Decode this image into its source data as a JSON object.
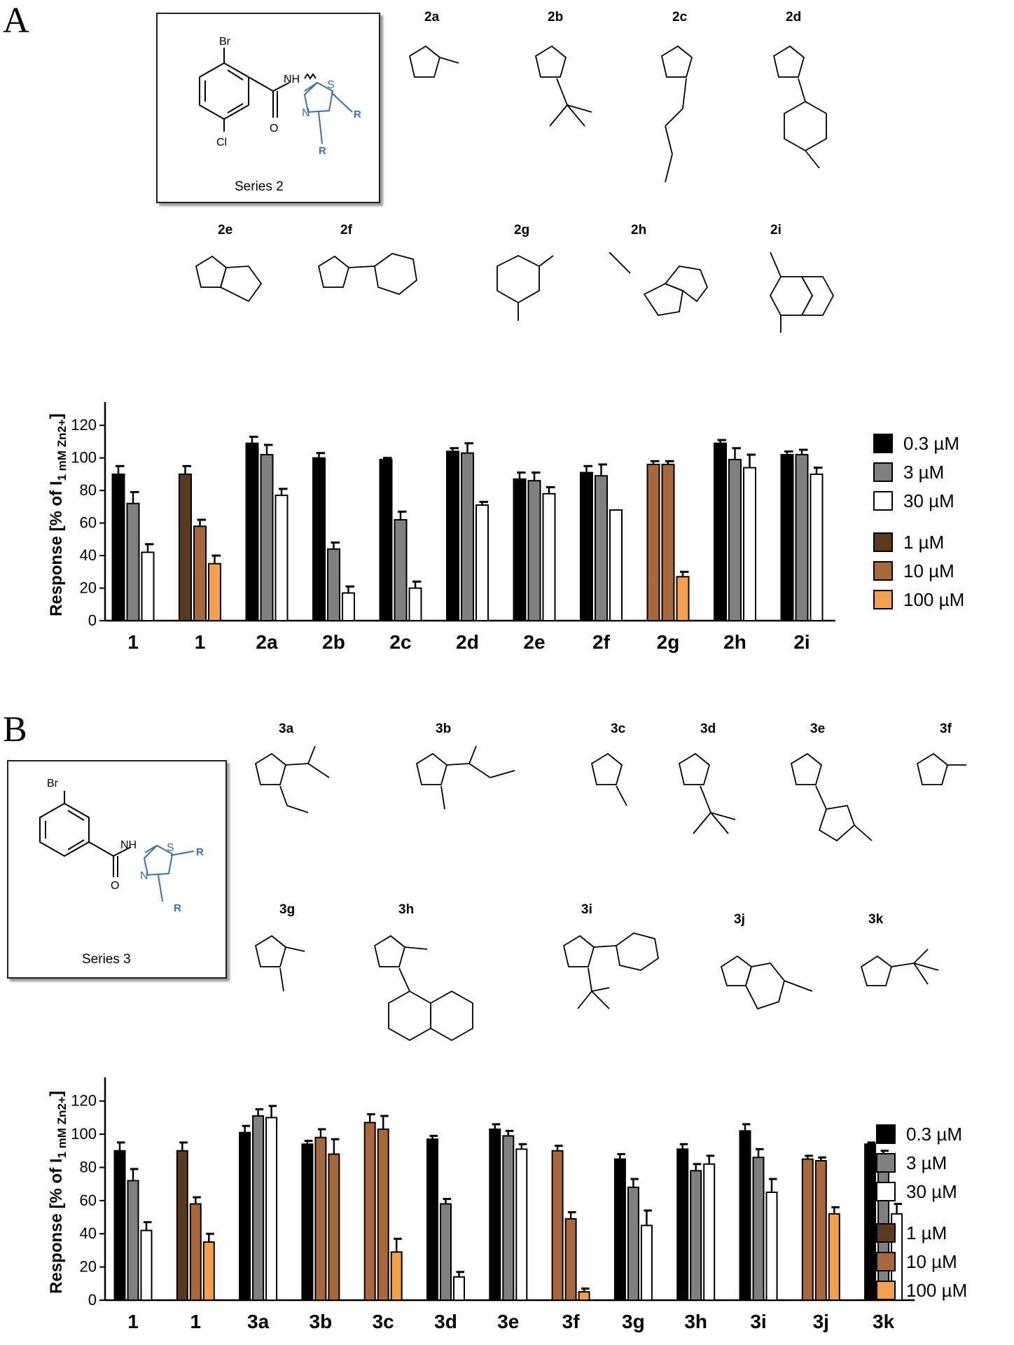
{
  "panels": [
    {
      "letter": "A",
      "series_caption": "Series 2",
      "scaffold_atoms": {
        "br": "Br",
        "cl": "Cl",
        "o": "O",
        "nh": "NH",
        "s": "S",
        "n": "N",
        "r1": "R",
        "r2": "R"
      },
      "compound_labels": [
        "2a",
        "2b",
        "2c",
        "2d",
        "2e",
        "2f",
        "2g",
        "2h",
        "2i"
      ]
    },
    {
      "letter": "B",
      "series_caption": "Series 3",
      "scaffold_atoms": {
        "br": "Br",
        "o": "O",
        "nh": "NH",
        "s": "S",
        "n": "N",
        "r1": "R",
        "r2": "R"
      },
      "compound_labels": [
        "3a",
        "3b",
        "3c",
        "3d",
        "3e",
        "3f",
        "3g",
        "3h",
        "3i",
        "3j",
        "3k"
      ]
    }
  ],
  "colors": {
    "black": "#000000",
    "grey": "#808080",
    "white": "#ffffff",
    "dark_brown": "#5a3a1e",
    "brown": "#a8683a",
    "orange": "#f5a04a",
    "scaffold_blue": "#3a6fb5"
  },
  "chart_data": [
    {
      "type": "bar",
      "ylabel": "Response [% of I1 mM Zn2+]",
      "ylabel_parts": {
        "main": "Response [% of I",
        "sub": "1 mM Zn2+",
        "close": "]"
      },
      "ylim": [
        0,
        130
      ],
      "yticks": [
        "0",
        "20",
        "40",
        "60",
        "80",
        "100",
        "120"
      ],
      "categories": [
        "1",
        "1",
        "2a",
        "2b",
        "2c",
        "2d",
        "2e",
        "2f",
        "2g",
        "2h",
        "2i"
      ],
      "legend_top": [
        "0.3 µM",
        "3 µM",
        "30 µM"
      ],
      "legend_bottom": [
        "1 µM",
        "10 µM",
        "100 µM"
      ],
      "groups": [
        {
          "bars": [
            {
              "v": 90,
              "e": 5,
              "c": "black"
            },
            {
              "v": 72,
              "e": 7,
              "c": "grey"
            },
            {
              "v": 42,
              "e": 5,
              "c": "white"
            }
          ]
        },
        {
          "bars": [
            {
              "v": 90,
              "e": 5,
              "c": "dark_brown"
            },
            {
              "v": 58,
              "e": 4,
              "c": "brown"
            },
            {
              "v": 35,
              "e": 5,
              "c": "orange"
            }
          ]
        },
        {
          "bars": [
            {
              "v": 109,
              "e": 4,
              "c": "black"
            },
            {
              "v": 102,
              "e": 6,
              "c": "grey"
            },
            {
              "v": 77,
              "e": 4,
              "c": "white"
            }
          ]
        },
        {
          "bars": [
            {
              "v": 100,
              "e": 3,
              "c": "black"
            },
            {
              "v": 44,
              "e": 4,
              "c": "grey"
            },
            {
              "v": 17,
              "e": 4,
              "c": "white"
            }
          ]
        },
        {
          "bars": [
            {
              "v": 99,
              "e": 1,
              "c": "black"
            },
            {
              "v": 62,
              "e": 5,
              "c": "grey"
            },
            {
              "v": 20,
              "e": 4,
              "c": "white"
            }
          ]
        },
        {
          "bars": [
            {
              "v": 104,
              "e": 2,
              "c": "black"
            },
            {
              "v": 103,
              "e": 6,
              "c": "grey"
            },
            {
              "v": 71,
              "e": 2,
              "c": "white"
            }
          ]
        },
        {
          "bars": [
            {
              "v": 87,
              "e": 4,
              "c": "black"
            },
            {
              "v": 86,
              "e": 5,
              "c": "grey"
            },
            {
              "v": 78,
              "e": 4,
              "c": "white"
            }
          ]
        },
        {
          "bars": [
            {
              "v": 91,
              "e": 4,
              "c": "black"
            },
            {
              "v": 89,
              "e": 7,
              "c": "grey"
            },
            {
              "v": 68,
              "e": 0,
              "c": "white"
            }
          ]
        },
        {
          "bars": [
            {
              "v": 96,
              "e": 2,
              "c": "brown"
            },
            {
              "v": 96,
              "e": 2,
              "c": "brown"
            },
            {
              "v": 27,
              "e": 3,
              "c": "orange"
            }
          ]
        },
        {
          "bars": [
            {
              "v": 109,
              "e": 2,
              "c": "black"
            },
            {
              "v": 99,
              "e": 7,
              "c": "grey"
            },
            {
              "v": 94,
              "e": 8,
              "c": "white"
            }
          ]
        },
        {
          "bars": [
            {
              "v": 102,
              "e": 2,
              "c": "black"
            },
            {
              "v": 102,
              "e": 3,
              "c": "grey"
            },
            {
              "v": 90,
              "e": 4,
              "c": "white"
            }
          ]
        }
      ]
    },
    {
      "type": "bar",
      "ylabel": "Response [% of I1 mM Zn2+]",
      "ylabel_parts": {
        "main": "Response [% of I",
        "sub": "1 mM Zn2+",
        "close": "]"
      },
      "ylim": [
        0,
        130
      ],
      "yticks": [
        "0",
        "20",
        "40",
        "60",
        "80",
        "100",
        "120"
      ],
      "categories": [
        "1",
        "1",
        "3a",
        "3b",
        "3c",
        "3d",
        "3e",
        "3f",
        "3g",
        "3h",
        "3i",
        "3j",
        "3k"
      ],
      "legend_top": [
        "0.3 µM",
        "3 µM",
        "30 µM"
      ],
      "legend_bottom": [
        "1 µM",
        "10 µM",
        "100 µM"
      ],
      "groups": [
        {
          "bars": [
            {
              "v": 90,
              "e": 5,
              "c": "black"
            },
            {
              "v": 72,
              "e": 7,
              "c": "grey"
            },
            {
              "v": 42,
              "e": 5,
              "c": "white"
            }
          ]
        },
        {
          "bars": [
            {
              "v": 90,
              "e": 5,
              "c": "dark_brown"
            },
            {
              "v": 58,
              "e": 4,
              "c": "brown"
            },
            {
              "v": 35,
              "e": 5,
              "c": "orange"
            }
          ]
        },
        {
          "bars": [
            {
              "v": 101,
              "e": 4,
              "c": "black"
            },
            {
              "v": 111,
              "e": 4,
              "c": "grey"
            },
            {
              "v": 110,
              "e": 7,
              "c": "white"
            }
          ]
        },
        {
          "bars": [
            {
              "v": 94,
              "e": 2,
              "c": "black"
            },
            {
              "v": 98,
              "e": 5,
              "c": "brown"
            },
            {
              "v": 88,
              "e": 9,
              "c": "brown"
            }
          ]
        },
        {
          "bars": [
            {
              "v": 107,
              "e": 5,
              "c": "brown"
            },
            {
              "v": 103,
              "e": 8,
              "c": "brown"
            },
            {
              "v": 29,
              "e": 8,
              "c": "orange"
            }
          ]
        },
        {
          "bars": [
            {
              "v": 97,
              "e": 2,
              "c": "black"
            },
            {
              "v": 58,
              "e": 3,
              "c": "grey"
            },
            {
              "v": 14,
              "e": 3,
              "c": "white"
            }
          ]
        },
        {
          "bars": [
            {
              "v": 103,
              "e": 3,
              "c": "black"
            },
            {
              "v": 99,
              "e": 3,
              "c": "grey"
            },
            {
              "v": 91,
              "e": 3,
              "c": "white"
            }
          ]
        },
        {
          "bars": [
            {
              "v": 90,
              "e": 3,
              "c": "brown"
            },
            {
              "v": 49,
              "e": 4,
              "c": "brown"
            },
            {
              "v": 5,
              "e": 2,
              "c": "orange"
            }
          ]
        },
        {
          "bars": [
            {
              "v": 85,
              "e": 3,
              "c": "black"
            },
            {
              "v": 68,
              "e": 5,
              "c": "grey"
            },
            {
              "v": 45,
              "e": 9,
              "c": "white"
            }
          ]
        },
        {
          "bars": [
            {
              "v": 91,
              "e": 3,
              "c": "black"
            },
            {
              "v": 78,
              "e": 4,
              "c": "grey"
            },
            {
              "v": 82,
              "e": 5,
              "c": "white"
            }
          ]
        },
        {
          "bars": [
            {
              "v": 102,
              "e": 4,
              "c": "black"
            },
            {
              "v": 86,
              "e": 5,
              "c": "grey"
            },
            {
              "v": 65,
              "e": 8,
              "c": "white"
            }
          ]
        },
        {
          "bars": [
            {
              "v": 85,
              "e": 2,
              "c": "brown"
            },
            {
              "v": 84,
              "e": 2,
              "c": "brown"
            },
            {
              "v": 52,
              "e": 4,
              "c": "orange"
            }
          ]
        },
        {
          "bars": [
            {
              "v": 94,
              "e": 1,
              "c": "black"
            },
            {
              "v": 87,
              "e": 3,
              "c": "grey"
            },
            {
              "v": 52,
              "e": 6,
              "c": "white"
            }
          ]
        }
      ]
    }
  ]
}
